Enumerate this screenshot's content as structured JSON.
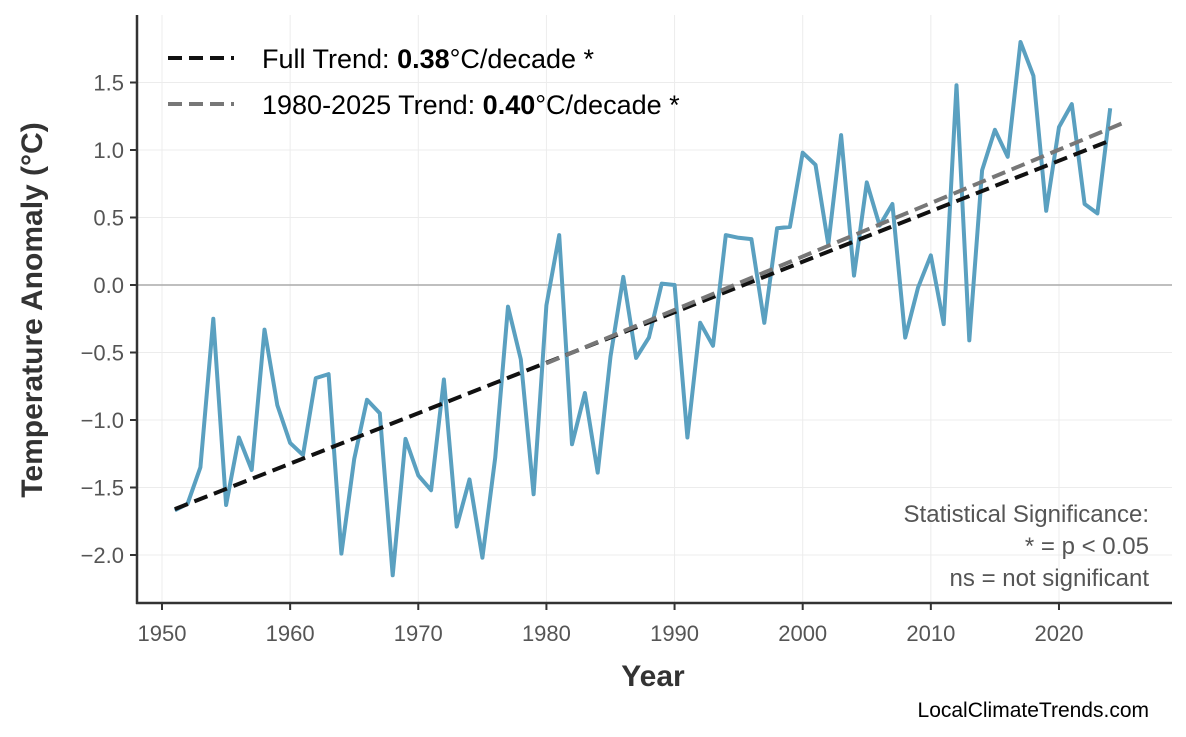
{
  "chart_data": {
    "type": "line",
    "xlabel": "Year",
    "ylabel": "Temperature Anomaly (°C)",
    "xlim": [
      1948,
      2029
    ],
    "ylim": [
      -2.35,
      2.0
    ],
    "xticks": [
      1950,
      1960,
      1970,
      1980,
      1990,
      2000,
      2010,
      2020
    ],
    "yticks": [
      -2.0,
      -1.5,
      -1.0,
      -0.5,
      0.0,
      0.5,
      1.0,
      1.5
    ],
    "ytick_labels": [
      "−2.0",
      "−1.5",
      "−1.0",
      "−0.5",
      "0.0",
      "0.5",
      "1.0",
      "1.5"
    ],
    "grid": true,
    "series_color": "#5aa0c0",
    "x": [
      1951,
      1952,
      1953,
      1954,
      1955,
      1956,
      1957,
      1958,
      1959,
      1960,
      1961,
      1962,
      1963,
      1964,
      1965,
      1966,
      1967,
      1968,
      1969,
      1970,
      1971,
      1972,
      1973,
      1974,
      1975,
      1976,
      1977,
      1978,
      1979,
      1980,
      1981,
      1982,
      1983,
      1984,
      1985,
      1986,
      1987,
      1988,
      1989,
      1990,
      1991,
      1992,
      1993,
      1994,
      1995,
      1996,
      1997,
      1998,
      1999,
      2000,
      2001,
      2002,
      2003,
      2004,
      2005,
      2006,
      2007,
      2008,
      2009,
      2010,
      2011,
      2012,
      2013,
      2014,
      2015,
      2016,
      2017,
      2018,
      2019,
      2020,
      2021,
      2022,
      2023,
      2024
    ],
    "y": [
      -1.67,
      -1.62,
      -1.35,
      -0.25,
      -1.63,
      -1.13,
      -1.37,
      -0.33,
      -0.89,
      -1.17,
      -1.26,
      -0.69,
      -0.66,
      -1.99,
      -1.29,
      -0.85,
      -0.95,
      -2.15,
      -1.14,
      -1.41,
      -1.52,
      -0.7,
      -1.79,
      -1.44,
      -2.02,
      -1.28,
      -0.16,
      -0.55,
      -1.55,
      -0.15,
      0.37,
      -1.18,
      -0.8,
      -1.39,
      -0.53,
      0.06,
      -0.54,
      -0.39,
      0.01,
      0.0,
      -1.13,
      -0.28,
      -0.45,
      0.37,
      0.35,
      0.34,
      -0.28,
      0.42,
      0.43,
      0.98,
      0.89,
      0.3,
      1.11,
      0.07,
      0.76,
      0.44,
      0.6,
      -0.39,
      -0.02,
      0.22,
      -0.29,
      1.48,
      -0.41,
      0.85,
      1.15,
      0.95,
      1.8,
      1.55,
      0.55,
      1.17,
      1.34,
      0.6,
      0.53,
      1.31
    ],
    "trends": [
      {
        "label_prefix": "Full Trend: ",
        "value": "0.38",
        "label_suffix": "°C/decade *",
        "color": "#111111",
        "x": [
          1951,
          2024
        ],
        "y": [
          -1.66,
          1.07
        ]
      },
      {
        "label_prefix": "1980-2025 Trend: ",
        "value": "0.40",
        "label_suffix": "°C/decade *",
        "color": "#777777",
        "x": [
          1980,
          2025
        ],
        "y": [
          -0.58,
          1.2
        ]
      }
    ],
    "legend_position": "top-left",
    "annotation": [
      "Statistical Significance:",
      "* = p < 0.05",
      "ns = not significant"
    ]
  },
  "footer": "LocalClimateTrends.com"
}
